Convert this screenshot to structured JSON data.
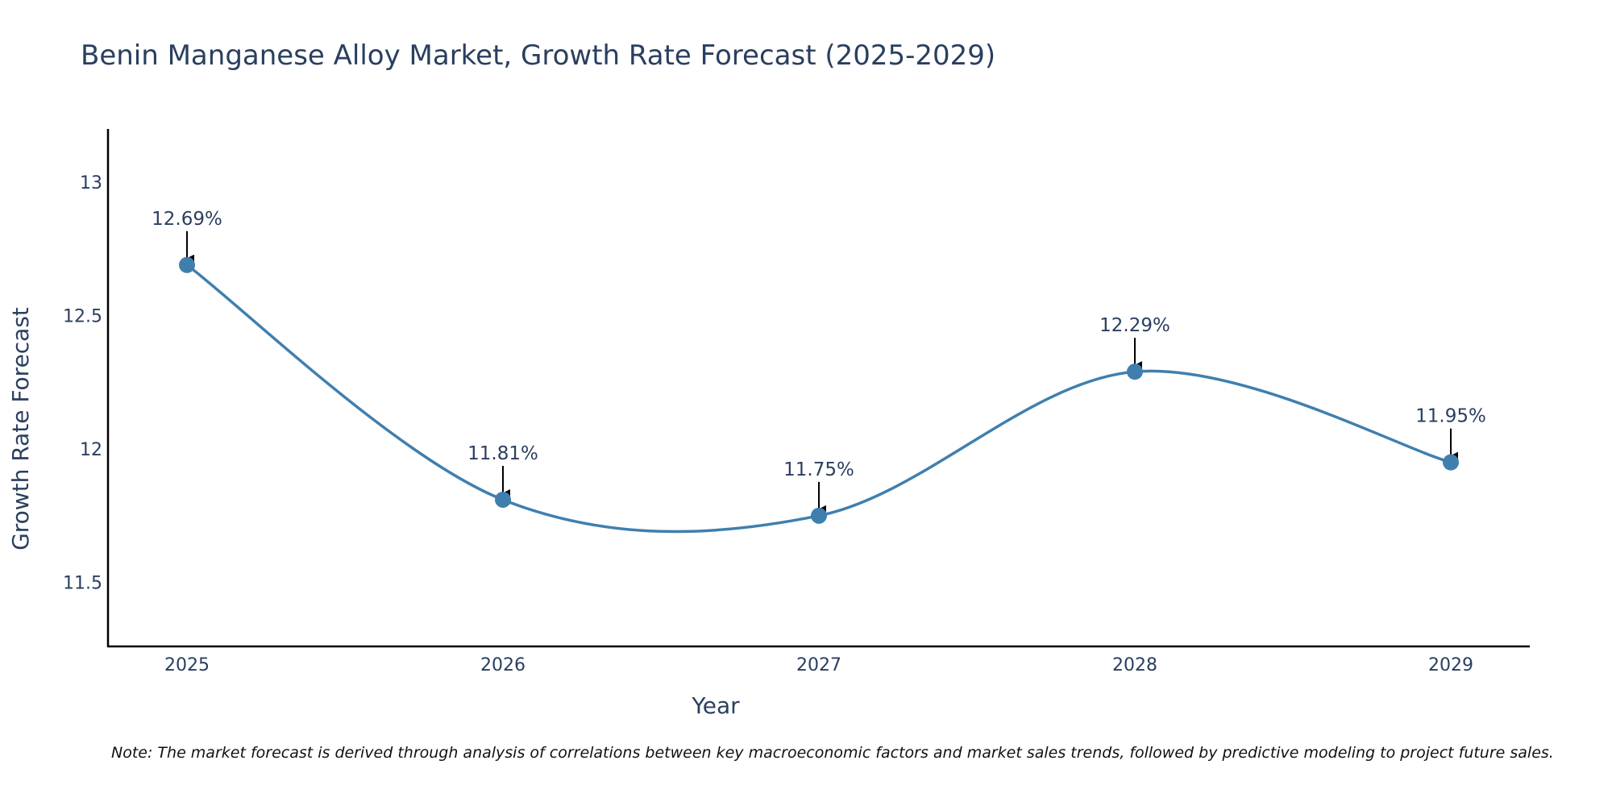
{
  "colors": {
    "line": "#3f7fae",
    "marker": "#3f7fae",
    "text": "#2a3f5f",
    "axis": "#000000",
    "arrow": "#000000",
    "background": "#ffffff"
  },
  "chart_data": {
    "type": "line",
    "title": "Benin Manganese Alloy Market, Growth Rate Forecast (2025-2029)",
    "xlabel": "Year",
    "ylabel": "Growth Rate Forecast",
    "categories": [
      "2025",
      "2026",
      "2027",
      "2028",
      "2029"
    ],
    "x": [
      2025,
      2026,
      2027,
      2028,
      2029
    ],
    "values": [
      12.69,
      11.81,
      11.75,
      12.29,
      11.95
    ],
    "data_labels": [
      "12.69%",
      "11.81%",
      "11.75%",
      "12.29%",
      "11.95%"
    ],
    "xlim": [
      2024.75,
      2029.25
    ],
    "ylim": [
      11.26,
      13.2
    ],
    "yticks": [
      11.5,
      12,
      12.5,
      13
    ],
    "ytick_labels": [
      "11.5",
      "12",
      "12.5",
      "13"
    ],
    "grid": false,
    "smoothing": "spline",
    "annotations": "arrow pointing to each data point with percentage label"
  },
  "note": "Note: The market forecast is derived through analysis of correlations between key macroeconomic factors and market sales trends, followed by predictive modeling to project future sales."
}
